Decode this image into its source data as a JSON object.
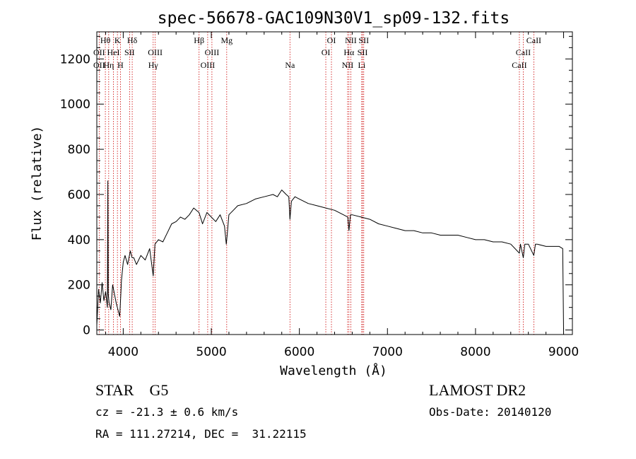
{
  "chart_data": {
    "type": "line",
    "title": "spec-56678-GAC109N30V1_sp09-132.fits",
    "xlabel": "Wavelength (Å)",
    "ylabel": "Flux (relative)",
    "xlim": [
      3700,
      9100
    ],
    "ylim": [
      -20,
      1320
    ],
    "x_ticks": [
      4000,
      5000,
      6000,
      7000,
      8000,
      9000
    ],
    "x_tick_labels": [
      "4000",
      "5000",
      "6000",
      "7000",
      "8000",
      "9000"
    ],
    "y_ticks": [
      0,
      200,
      400,
      600,
      800,
      1000,
      1200
    ],
    "y_tick_labels": [
      "0",
      "200",
      "400",
      "600",
      "800",
      "1000",
      "1200"
    ],
    "grid": false,
    "series": [
      {
        "x": [
          3700,
          3720,
          3740,
          3760,
          3780,
          3800,
          3820,
          3825,
          3830,
          3840,
          3860,
          3880,
          3900,
          3920,
          3940,
          3960,
          3970,
          3980,
          4000,
          4020,
          4050,
          4080,
          4100,
          4120,
          4150,
          4200,
          4250,
          4300,
          4340,
          4360,
          4400,
          4450,
          4500,
          4550,
          4600,
          4650,
          4700,
          4750,
          4800,
          4860,
          4900,
          4950,
          5000,
          5050,
          5100,
          5150,
          5170,
          5180,
          5200,
          5250,
          5300,
          5400,
          5500,
          5600,
          5700,
          5750,
          5800,
          5850,
          5880,
          5893,
          5910,
          5950,
          6000,
          6100,
          6200,
          6300,
          6400,
          6500,
          6550,
          6563,
          6580,
          6600,
          6700,
          6800,
          6900,
          7000,
          7100,
          7200,
          7300,
          7400,
          7500,
          7600,
          7700,
          7800,
          7900,
          8000,
          8100,
          8200,
          8300,
          8400,
          8498,
          8510,
          8542,
          8560,
          8600,
          8662,
          8680,
          8700,
          8800,
          8900,
          8950,
          8990,
          9000
        ],
        "y": [
          20,
          180,
          120,
          210,
          130,
          170,
          100,
          660,
          160,
          120,
          90,
          200,
          160,
          120,
          90,
          60,
          140,
          220,
          300,
          330,
          290,
          350,
          320,
          320,
          290,
          330,
          310,
          360,
          240,
          380,
          400,
          390,
          430,
          470,
          480,
          500,
          490,
          510,
          540,
          520,
          470,
          520,
          500,
          480,
          510,
          460,
          380,
          420,
          510,
          530,
          550,
          560,
          580,
          590,
          600,
          590,
          620,
          600,
          590,
          490,
          570,
          590,
          580,
          560,
          550,
          540,
          530,
          510,
          500,
          440,
          510,
          510,
          500,
          490,
          470,
          460,
          450,
          440,
          440,
          430,
          430,
          420,
          420,
          420,
          410,
          400,
          400,
          390,
          390,
          380,
          340,
          380,
          320,
          380,
          380,
          330,
          380,
          380,
          370,
          370,
          370,
          360,
          0
        ]
      }
    ],
    "line_labels": [
      {
        "label": "Hθ",
        "x": 3797,
        "row": 0
      },
      {
        "label": "OII",
        "x": 3727,
        "row": 1
      },
      {
        "label": "OII",
        "x": 3727,
        "row": 2
      },
      {
        "label": "Hη",
        "x": 3835,
        "row": 2
      },
      {
        "label": "K",
        "x": 3934,
        "row": 0
      },
      {
        "label": "HeI",
        "x": 3889,
        "row": 1
      },
      {
        "label": "H",
        "x": 3968,
        "row": 2
      },
      {
        "label": "SII",
        "x": 4072,
        "row": 1
      },
      {
        "label": "Hδ",
        "x": 4102,
        "row": 0
      },
      {
        "label": "OIII",
        "x": 4363,
        "row": 1
      },
      {
        "label": "Hγ",
        "x": 4340,
        "row": 2
      },
      {
        "label": "Hβ",
        "x": 4861,
        "row": 0
      },
      {
        "label": "OIII",
        "x": 5007,
        "row": 1
      },
      {
        "label": "OIII",
        "x": 4959,
        "row": 2
      },
      {
        "label": "Mg",
        "x": 5175,
        "row": 0
      },
      {
        "label": "Na",
        "x": 5893,
        "row": 2
      },
      {
        "label": "OI",
        "x": 6364,
        "row": 0
      },
      {
        "label": "OI",
        "x": 6300,
        "row": 1
      },
      {
        "label": "NII",
        "x": 6584,
        "row": 0
      },
      {
        "label": "Hα",
        "x": 6563,
        "row": 1
      },
      {
        "label": "NII",
        "x": 6548,
        "row": 2
      },
      {
        "label": "SII",
        "x": 6731,
        "row": 0
      },
      {
        "label": "SII",
        "x": 6717,
        "row": 1
      },
      {
        "label": "Li",
        "x": 6708,
        "row": 2
      },
      {
        "label": "CaII",
        "x": 8662,
        "row": 0
      },
      {
        "label": "CaII",
        "x": 8542,
        "row": 1
      },
      {
        "label": "CaII",
        "x": 8498,
        "row": 2
      }
    ],
    "line_color": "#000000",
    "marker_color": "#cc0000"
  },
  "info": {
    "class_line": "STAR    G5",
    "cz_line": "cz = -21.3 ± 0.6 km/s",
    "coord_line": "RA = 111.27214, DEC =  31.22115",
    "survey": "LAMOST DR2",
    "obs_date": "Obs-Date: 20140120"
  }
}
